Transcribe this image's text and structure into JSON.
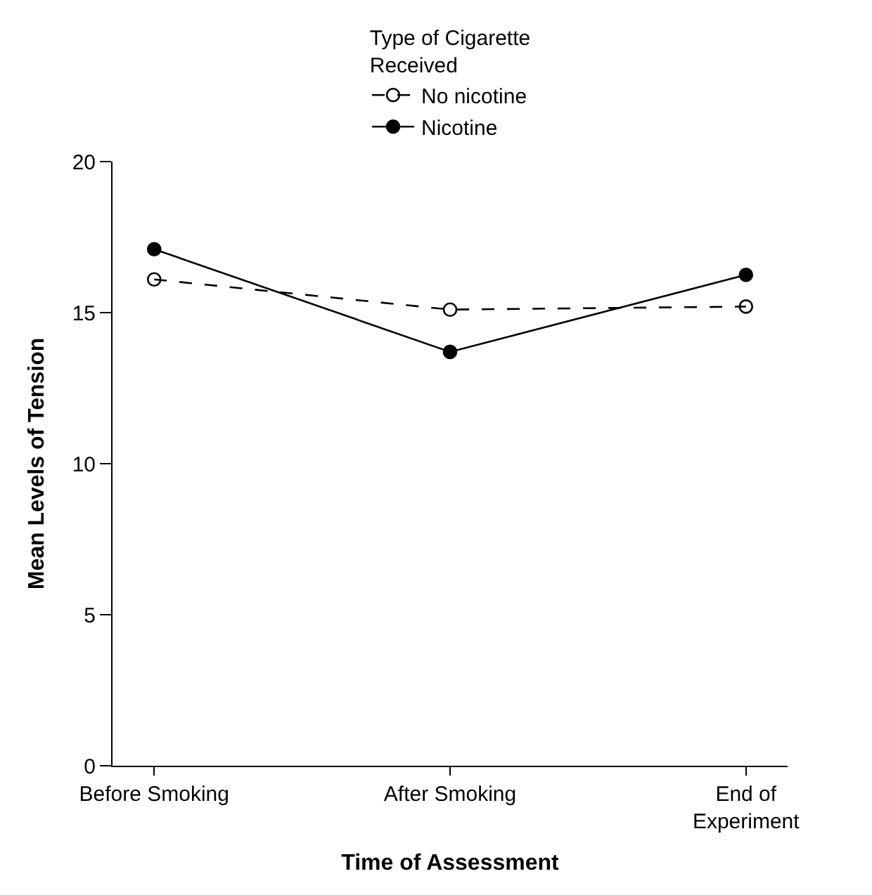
{
  "chart_data": {
    "type": "line",
    "xlabel": "Time of Assessment",
    "ylabel": "Mean Levels of Tension",
    "legend_title": "Type of Cigarette\nReceived",
    "categories": [
      "Before Smoking",
      "After Smoking",
      "End of\nExperiment"
    ],
    "series": [
      {
        "name": "No nicotine",
        "color": "#000000",
        "values": [
          16.1,
          15.1,
          15.2
        ],
        "line_style": "dashed",
        "marker": "circle"
      },
      {
        "name": "Nicotine",
        "color": "#000000",
        "values": [
          17.1,
          13.7,
          16.25
        ],
        "line_style": "solid",
        "marker": "circle"
      }
    ],
    "ylim": [
      0,
      20
    ],
    "yticks": [
      0,
      5,
      10,
      15,
      20
    ],
    "legend": "top"
  }
}
